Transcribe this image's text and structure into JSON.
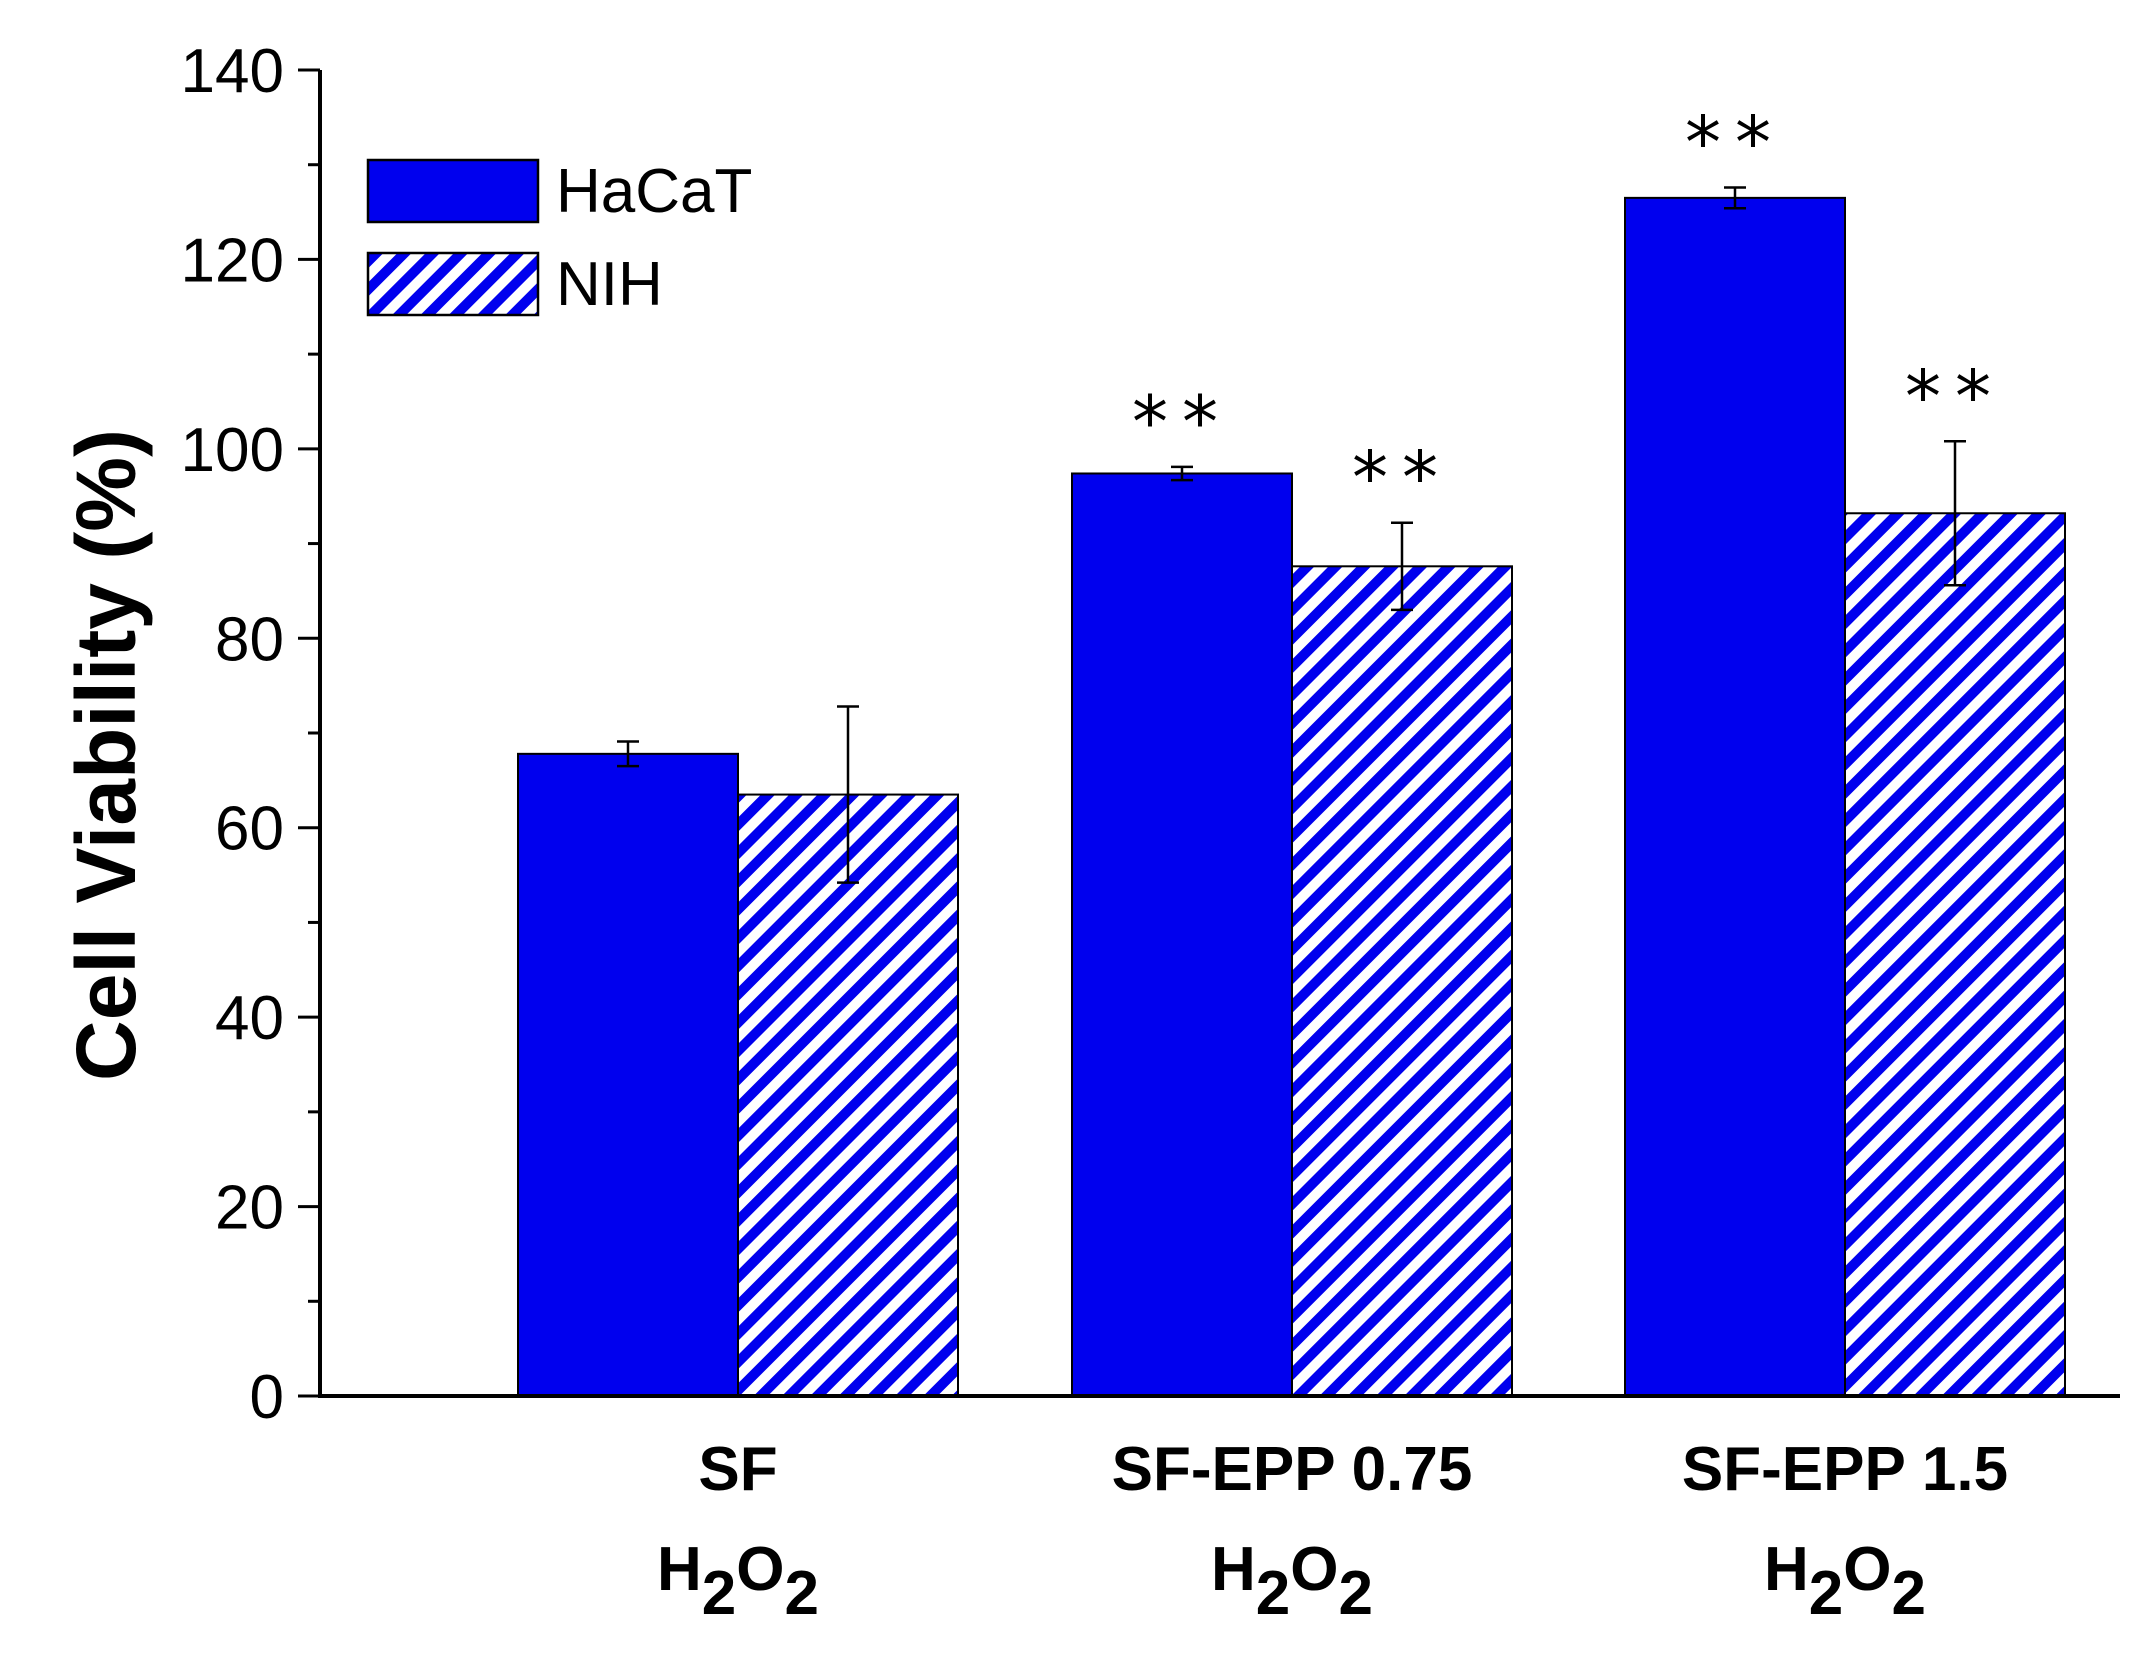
{
  "chart_data": {
    "type": "bar",
    "title": "",
    "xlabel": "",
    "ylabel": "Cell Viability (%)",
    "ylim": [
      0,
      140
    ],
    "yticks": [
      0,
      20,
      40,
      60,
      80,
      100,
      120,
      140
    ],
    "categories": [
      {
        "line1": "SF",
        "line2_base": "H",
        "line2_sub1": "2",
        "line2_mid": "O",
        "line2_sub2": "2"
      },
      {
        "line1": "SF-EPP 0.75",
        "line2_base": "H",
        "line2_sub1": "2",
        "line2_mid": "O",
        "line2_sub2": "2"
      },
      {
        "line1": "SF-EPP 1.5",
        "line2_base": "H",
        "line2_sub1": "2",
        "line2_mid": "O",
        "line2_sub2": "2"
      }
    ],
    "series": [
      {
        "name": "HaCaT",
        "pattern": "solid",
        "color": "#0000ee",
        "values": [
          67.8,
          97.4,
          126.5
        ],
        "errors": [
          1.3,
          0.7,
          1.1
        ],
        "annotations": [
          "",
          "**",
          "**"
        ]
      },
      {
        "name": "NIH",
        "pattern": "hatched",
        "color": "#0000ee",
        "values": [
          63.5,
          87.6,
          93.2
        ],
        "errors": [
          9.3,
          4.6,
          7.6
        ],
        "annotations": [
          "",
          "**",
          "**"
        ]
      }
    ],
    "legend_position": "top-left"
  }
}
